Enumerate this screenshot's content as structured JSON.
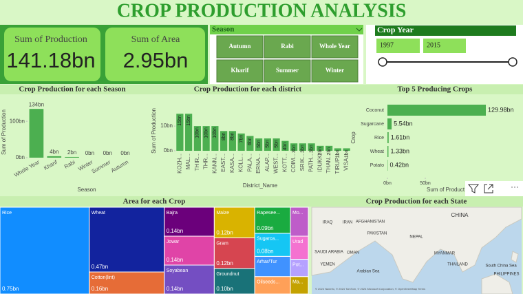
{
  "header": {
    "title": "CROP PRODUCTION ANALYSIS"
  },
  "cards": [
    {
      "label": "Sum of Production",
      "value": "141.18bn"
    },
    {
      "label": "Sum of Area",
      "value": "2.95bn"
    }
  ],
  "season_slicer": {
    "title": "Season",
    "options": [
      "Autumn",
      "Rabi",
      "Whole Year",
      "Kharif",
      "Summer",
      "Winter"
    ]
  },
  "year_slicer": {
    "title": "Crop Year",
    "start": "1997",
    "end": "2015"
  },
  "chart_data": [
    {
      "type": "bar",
      "title": "Crop Production for each Season",
      "xlabel": "Season",
      "ylabel": "Sum of Production",
      "categories": [
        "Whole Year",
        "Kharif",
        "Rabi",
        "Winter",
        "Summer",
        "Autumn"
      ],
      "values": [
        134,
        4,
        2,
        0,
        0,
        0
      ],
      "value_labels": [
        "134bn",
        "4bn",
        "2bn",
        "0bn",
        "0bn",
        "0bn"
      ],
      "color": "#4caf50",
      "ylim": [
        0,
        140
      ],
      "yticks": [
        {
          "value": 0,
          "label": "0bn"
        },
        {
          "value": 100,
          "label": "100bn"
        }
      ]
    },
    {
      "type": "bar",
      "title": "Crop Production for each district",
      "xlabel": "District_Name",
      "ylabel": "Sum of Production",
      "categories": [
        "KOZH...",
        "MAL...",
        "THIR...",
        "THR...",
        "KANN...",
        "EAST...",
        "KASA...",
        "KOLL...",
        "PALA...",
        "ERNA...",
        "ALAP...",
        "WEST...",
        "KOTT...",
        "COIM...",
        "SRIK...",
        "PATH...",
        "IDUKKI",
        "THAN...",
        "TIRUP...",
        "VISA..."
      ],
      "values": [
        15,
        15,
        10,
        10,
        10,
        8,
        8,
        7,
        6,
        5,
        5,
        5,
        4,
        3,
        3,
        3,
        2,
        2,
        1,
        1
      ],
      "value_labels": [
        "15bn",
        "15bn",
        "10bn",
        "10bn",
        "10bn",
        "8bn",
        "8bn",
        "7bn",
        "6bn",
        "5bn",
        "5bn",
        "5bn",
        "4bn",
        "3bn",
        "3bn",
        "3bn",
        "2bn",
        "2bn",
        "1bn",
        "1bn"
      ],
      "color": "#4caf50",
      "ylim": [
        0,
        17
      ],
      "yticks": [
        {
          "value": 0,
          "label": "0bn"
        },
        {
          "value": 10,
          "label": "10bn"
        }
      ]
    },
    {
      "type": "hbar",
      "title": "Top 5 Producing Crops",
      "xlabel": "Sum of Product",
      "ylabel": "Crop",
      "categories": [
        "Coconut",
        "Sugarcane",
        "Rice",
        "Wheat",
        "Potato"
      ],
      "values": [
        129.98,
        5.54,
        1.61,
        1.33,
        0.42
      ],
      "value_labels": [
        "129.98bn",
        "5.54bn",
        "1.61bn",
        "1.33bn",
        "0.42bn"
      ],
      "color": "#4caf50",
      "xlim": [
        0,
        140
      ],
      "xticks": [
        {
          "value": 0,
          "label": "0bn"
        },
        {
          "value": 50,
          "label": "50bn"
        }
      ]
    },
    {
      "type": "treemap",
      "title": "Area for each Crop",
      "items": [
        {
          "name": "Rice",
          "value": 0.75,
          "value_label": "0.75bn",
          "color": "#118dff"
        },
        {
          "name": "Wheat",
          "value": 0.47,
          "value_label": "0.47bn",
          "color": "#12239e"
        },
        {
          "name": "Cotton(lint)",
          "value": 0.16,
          "value_label": "0.16bn",
          "color": "#e66c37"
        },
        {
          "name": "Bajra",
          "value": 0.14,
          "value_label": "0.14bn",
          "color": "#6b007b"
        },
        {
          "name": "Jowar",
          "value": 0.14,
          "value_label": "0.14bn",
          "color": "#e044a7"
        },
        {
          "name": "Soyabean",
          "value": 0.14,
          "value_label": "0.14bn",
          "color": "#744ec2"
        },
        {
          "name": "Maize",
          "value": 0.12,
          "value_label": "0.12bn",
          "color": "#d9b300"
        },
        {
          "name": "Gram",
          "value": 0.12,
          "value_label": "0.12bn",
          "color": "#d64550"
        },
        {
          "name": "Groundnut",
          "value": 0.1,
          "value_label": "0.10bn",
          "color": "#197278"
        },
        {
          "name": "Rapesee...",
          "value": 0.09,
          "value_label": "0.09bn",
          "color": "#1aab40"
        },
        {
          "name": "Sugarca...",
          "value": 0.08,
          "value_label": "0.08bn",
          "color": "#15c6f4"
        },
        {
          "name": "Arhar/Tur",
          "value": 0.07,
          "color": "#4092ff"
        },
        {
          "name": "Oilseeds...",
          "value": 0.06,
          "color": "#ffa058"
        },
        {
          "name": "Mo...",
          "value": 0.05,
          "color": "#be5dc9"
        },
        {
          "name": "Urad",
          "value": 0.04,
          "color": "#f472d0"
        },
        {
          "name": "Pot...",
          "value": 0.03,
          "color": "#b5a1ff"
        },
        {
          "name": "Ma...",
          "value": 0.03,
          "color": "#c4a200"
        }
      ]
    }
  ],
  "map": {
    "title": "Crop Production for each State",
    "labels": [
      "CHINA",
      "IRAQ",
      "IRAN",
      "AFGHANISTAN",
      "PAKISTAN",
      "NEPAL",
      "SAUDI ARABIA",
      "OMAN",
      "MYANMAR",
      "YEMEN",
      "THAILAND",
      "South China Sea",
      "PHILIPPINES",
      "Arabian Sea"
    ],
    "attribution": "© 2024 NavInfo, © 2024 TomTom, © 2024 Microsoft Corporation, © OpenStreetMap Terms"
  }
}
